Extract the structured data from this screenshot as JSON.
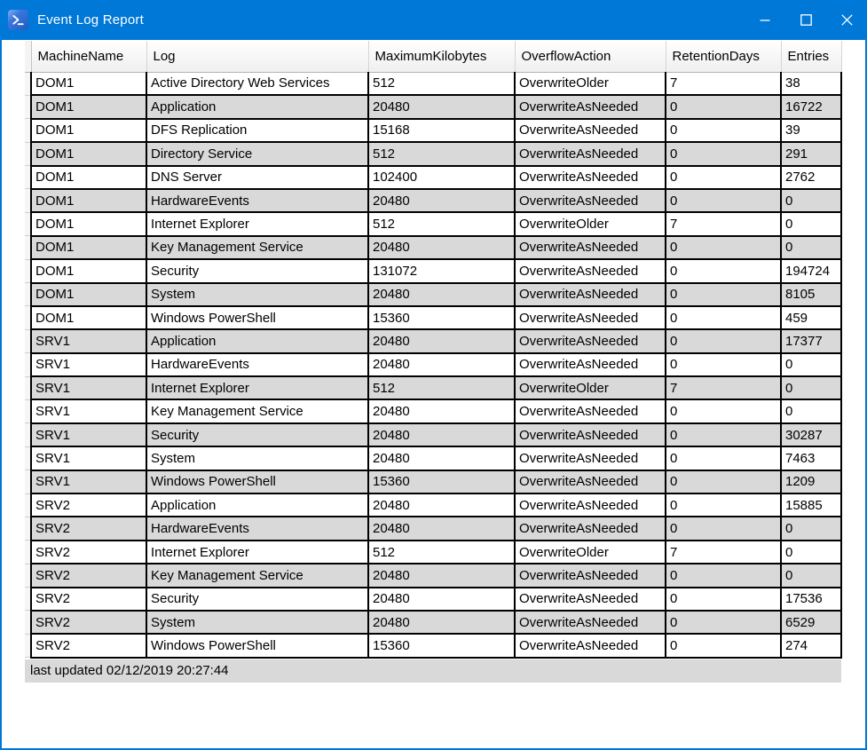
{
  "window": {
    "title": "Event Log Report",
    "icons": {
      "app": "powershell-icon",
      "minimize": "minimize-icon",
      "maximize": "maximize-icon",
      "close": "close-icon"
    }
  },
  "colors": {
    "titlebar_blue": "#0078D7",
    "window_border_blue": "#0078D7",
    "alternate_row_gray": "#D9D9D9",
    "gridline_black": "#000000",
    "statusbar_gray": "#D9D9D9"
  },
  "table": {
    "columns": [
      "MachineName",
      "Log",
      "MaximumKilobytes",
      "OverflowAction",
      "RetentionDays",
      "Entries"
    ],
    "column_keys": [
      "machine-name",
      "log",
      "maximum-kilobytes",
      "overflow-action",
      "retention-days",
      "entries"
    ],
    "rows": [
      [
        "DOM1",
        "Active Directory Web Services",
        "512",
        "OverwriteOlder",
        "7",
        "38"
      ],
      [
        "DOM1",
        "Application",
        "20480",
        "OverwriteAsNeeded",
        "0",
        "16722"
      ],
      [
        "DOM1",
        "DFS Replication",
        "15168",
        "OverwriteAsNeeded",
        "0",
        "39"
      ],
      [
        "DOM1",
        "Directory Service",
        "512",
        "OverwriteAsNeeded",
        "0",
        "291"
      ],
      [
        "DOM1",
        "DNS Server",
        "102400",
        "OverwriteAsNeeded",
        "0",
        "2762"
      ],
      [
        "DOM1",
        "HardwareEvents",
        "20480",
        "OverwriteAsNeeded",
        "0",
        "0"
      ],
      [
        "DOM1",
        "Internet Explorer",
        "512",
        "OverwriteOlder",
        "7",
        "0"
      ],
      [
        "DOM1",
        "Key Management Service",
        "20480",
        "OverwriteAsNeeded",
        "0",
        "0"
      ],
      [
        "DOM1",
        "Security",
        "131072",
        "OverwriteAsNeeded",
        "0",
        "194724"
      ],
      [
        "DOM1",
        "System",
        "20480",
        "OverwriteAsNeeded",
        "0",
        "8105"
      ],
      [
        "DOM1",
        "Windows PowerShell",
        "15360",
        "OverwriteAsNeeded",
        "0",
        "459"
      ],
      [
        "SRV1",
        "Application",
        "20480",
        "OverwriteAsNeeded",
        "0",
        "17377"
      ],
      [
        "SRV1",
        "HardwareEvents",
        "20480",
        "OverwriteAsNeeded",
        "0",
        "0"
      ],
      [
        "SRV1",
        "Internet Explorer",
        "512",
        "OverwriteOlder",
        "7",
        "0"
      ],
      [
        "SRV1",
        "Key Management Service",
        "20480",
        "OverwriteAsNeeded",
        "0",
        "0"
      ],
      [
        "SRV1",
        "Security",
        "20480",
        "OverwriteAsNeeded",
        "0",
        "30287"
      ],
      [
        "SRV1",
        "System",
        "20480",
        "OverwriteAsNeeded",
        "0",
        "7463"
      ],
      [
        "SRV1",
        "Windows PowerShell",
        "15360",
        "OverwriteAsNeeded",
        "0",
        "1209"
      ],
      [
        "SRV2",
        "Application",
        "20480",
        "OverwriteAsNeeded",
        "0",
        "15885"
      ],
      [
        "SRV2",
        "HardwareEvents",
        "20480",
        "OverwriteAsNeeded",
        "0",
        "0"
      ],
      [
        "SRV2",
        "Internet Explorer",
        "512",
        "OverwriteOlder",
        "7",
        "0"
      ],
      [
        "SRV2",
        "Key Management Service",
        "20480",
        "OverwriteAsNeeded",
        "0",
        "0"
      ],
      [
        "SRV2",
        "Security",
        "20480",
        "OverwriteAsNeeded",
        "0",
        "17536"
      ],
      [
        "SRV2",
        "System",
        "20480",
        "OverwriteAsNeeded",
        "0",
        "6529"
      ],
      [
        "SRV2",
        "Windows PowerShell",
        "15360",
        "OverwriteAsNeeded",
        "0",
        "274"
      ]
    ]
  },
  "statusbar": {
    "text": "last updated 02/12/2019 20:27:44"
  }
}
